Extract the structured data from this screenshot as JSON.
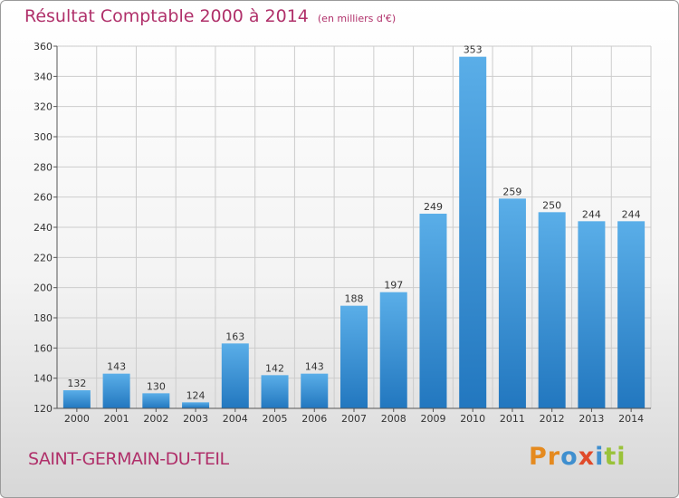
{
  "title": "Résultat Comptable 2000 à 2014",
  "unit_label": "(en milliers d'€)",
  "city": "SAINT-GERMAIN-DU-TEIL",
  "logo": "Proxiti",
  "colors": {
    "title": "#b0306a",
    "bar_light": "#5aaee8",
    "bar_dark": "#2277bf",
    "grid": "#cccccc"
  },
  "chart_data": {
    "type": "bar",
    "title": "Résultat Comptable 2000 à 2014",
    "ylabel": "en milliers d'€",
    "xlabel": "",
    "categories": [
      "2000",
      "2001",
      "2002",
      "2003",
      "2004",
      "2005",
      "2006",
      "2007",
      "2008",
      "2009",
      "2010",
      "2011",
      "2012",
      "2013",
      "2014"
    ],
    "values": [
      132,
      143,
      130,
      124,
      163,
      142,
      143,
      188,
      197,
      249,
      353,
      259,
      250,
      244,
      244
    ],
    "ylim": [
      120,
      360
    ],
    "yticks": [
      120,
      140,
      160,
      180,
      200,
      220,
      240,
      260,
      280,
      300,
      320,
      340,
      360
    ],
    "grid": true
  }
}
